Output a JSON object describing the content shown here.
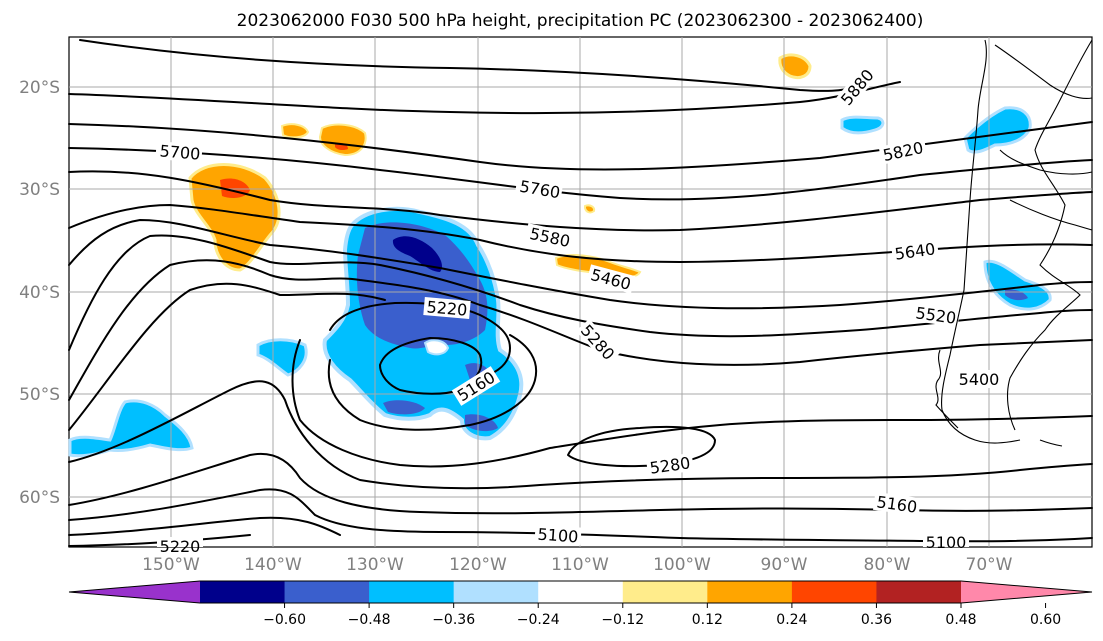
{
  "title": "2023062000 F030 500 hPa height, precipitation PC (2023062300 - 2023062400)",
  "lat_labels": [
    "20°S",
    "30°S",
    "40°S",
    "50°S",
    "60°S"
  ],
  "lon_labels": [
    "150°W",
    "140°W",
    "130°W",
    "120°W",
    "110°W",
    "100°W",
    "90°W",
    "80°W",
    "70°W"
  ],
  "colorbar": {
    "ticks": [
      "−0.60",
      "−0.48",
      "−0.36",
      "−0.24",
      "−0.12",
      "0.12",
      "0.24",
      "0.36",
      "0.48",
      "0.60"
    ],
    "colors": [
      "#9932cc",
      "#00008b",
      "#3a5fcd",
      "#00bfff",
      "#b0e0ff",
      "#ffffff",
      "#ffec8b",
      "#ffa500",
      "#ff4500",
      "#b22222",
      "#ff88aa"
    ]
  },
  "contour_labels": {
    "c5880": "5880",
    "c5820": "5820",
    "c5700": "5700",
    "c5760": "5760",
    "c5580": "5580",
    "c5640": "5640",
    "c5460": "5460",
    "c5220a": "5220",
    "c5280a": "5280",
    "c5520": "5520",
    "c5400": "5400",
    "c5160a": "5160",
    "c5280b": "5280",
    "c5160b": "5160",
    "c5100a": "5100",
    "c5100b": "5100",
    "c5220b": "5220"
  }
}
